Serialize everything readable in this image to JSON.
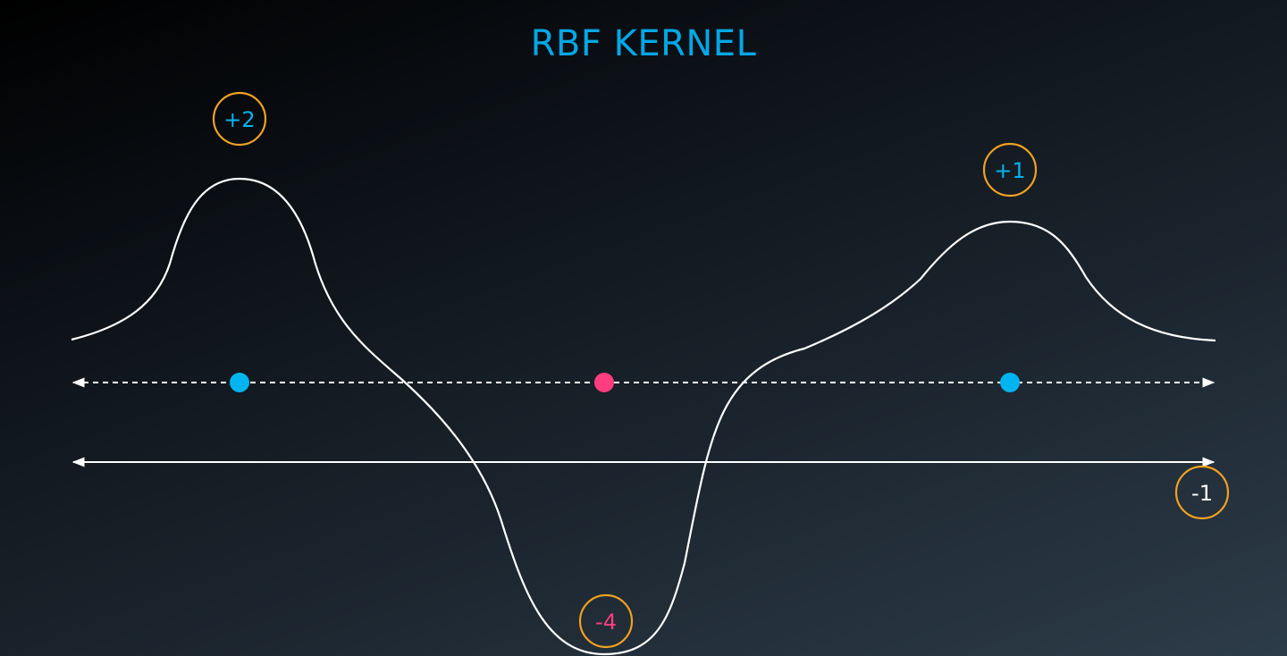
{
  "title": "RBF KERNEL",
  "colors": {
    "title": "#00a8e6",
    "curve": "#ffffff",
    "axis": "#ffffff",
    "badge_border": "#f0a122",
    "positive_point": "#00b4ef",
    "negative_point": "#ff3d7f",
    "positive_label": "#00b4ef",
    "negative_label": "#ff3d7f",
    "neutral_label": "#ffffff"
  },
  "points": [
    {
      "label": "+2",
      "kind": "positive"
    },
    {
      "label": "-4",
      "kind": "negative"
    },
    {
      "label": "+1",
      "kind": "positive"
    }
  ],
  "threshold": {
    "label": "-1"
  }
}
